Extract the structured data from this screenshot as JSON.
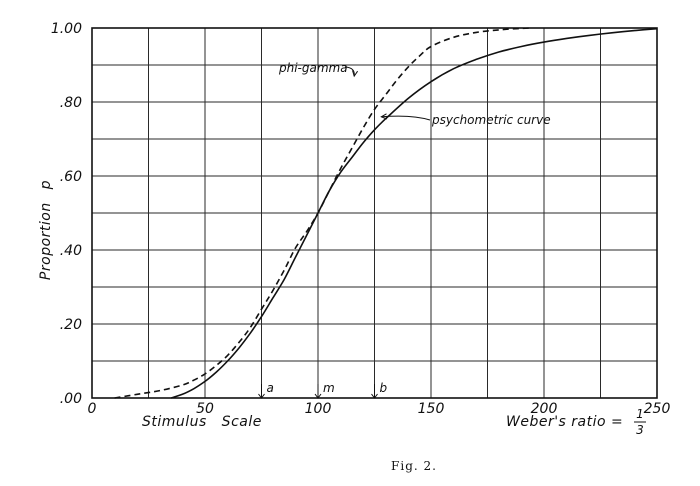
{
  "chart_data": {
    "type": "line",
    "ylabel": "Proportion",
    "ylabel_subscript": "p",
    "xlabel": "Stimulus   Scale",
    "x_note": "Weber's ratio =",
    "x_note_fraction": {
      "num": "1",
      "den": "3"
    },
    "xlim": [
      0,
      250
    ],
    "ylim": [
      0,
      1
    ],
    "x_ticks": [
      0,
      25,
      50,
      75,
      100,
      125,
      150,
      175,
      200,
      225,
      250
    ],
    "x_tick_labels": [
      {
        "x": 0,
        "text": "0"
      },
      {
        "x": 50,
        "text": "50"
      },
      {
        "x": 100,
        "text": "100"
      },
      {
        "x": 150,
        "text": "150"
      },
      {
        "x": 200,
        "text": "200"
      },
      {
        "x": 250,
        "text": "250"
      }
    ],
    "y_ticks": [
      0,
      0.1,
      0.2,
      0.3,
      0.4,
      0.5,
      0.6,
      0.7,
      0.8,
      0.9,
      1.0
    ],
    "y_tick_labels": [
      {
        "y": 0,
        "text": ".00"
      },
      {
        "y": 0.2,
        "text": ".20"
      },
      {
        "y": 0.4,
        "text": ".40"
      },
      {
        "y": 0.6,
        "text": ".60"
      },
      {
        "y": 0.8,
        "text": ".80"
      },
      {
        "y": 1.0,
        "text": "1.00"
      }
    ],
    "grid": true,
    "series": [
      {
        "name": "psychometric curve",
        "style": "solid",
        "x": [
          35,
          40,
          45,
          50,
          55,
          60,
          65,
          70,
          75,
          80,
          85,
          90,
          95,
          100,
          105,
          110,
          115,
          120,
          125,
          130,
          140,
          150,
          160,
          170,
          180,
          190,
          200,
          210,
          220,
          230,
          240,
          250
        ],
        "y": [
          0.0,
          0.01,
          0.025,
          0.045,
          0.07,
          0.1,
          0.135,
          0.175,
          0.22,
          0.27,
          0.32,
          0.38,
          0.44,
          0.5,
          0.56,
          0.61,
          0.65,
          0.69,
          0.725,
          0.755,
          0.81,
          0.855,
          0.89,
          0.915,
          0.935,
          0.95,
          0.962,
          0.972,
          0.98,
          0.987,
          0.993,
          0.998
        ]
      },
      {
        "name": "phi-gamma",
        "style": "dashed",
        "x": [
          10,
          20,
          30,
          40,
          45,
          50,
          55,
          60,
          65,
          70,
          75,
          80,
          85,
          90,
          95,
          100,
          105,
          110,
          115,
          120,
          125,
          130,
          135,
          140,
          145,
          150,
          160,
          170,
          180,
          190,
          195
        ],
        "y": [
          0.0,
          0.01,
          0.02,
          0.035,
          0.048,
          0.065,
          0.088,
          0.115,
          0.15,
          0.19,
          0.24,
          0.29,
          0.345,
          0.405,
          0.45,
          0.5,
          0.56,
          0.62,
          0.675,
          0.73,
          0.78,
          0.82,
          0.86,
          0.895,
          0.925,
          0.95,
          0.975,
          0.988,
          0.995,
          0.999,
          1.0
        ]
      }
    ],
    "annotations": [
      {
        "text": "a",
        "x": 75
      },
      {
        "text": "m",
        "x": 100
      },
      {
        "text": "b",
        "x": 125
      }
    ],
    "curve_labels": [
      {
        "text": "phi-gamma",
        "series": 1
      },
      {
        "text": "psychometric curve",
        "series": 0
      }
    ]
  },
  "caption": "Fig. 2."
}
